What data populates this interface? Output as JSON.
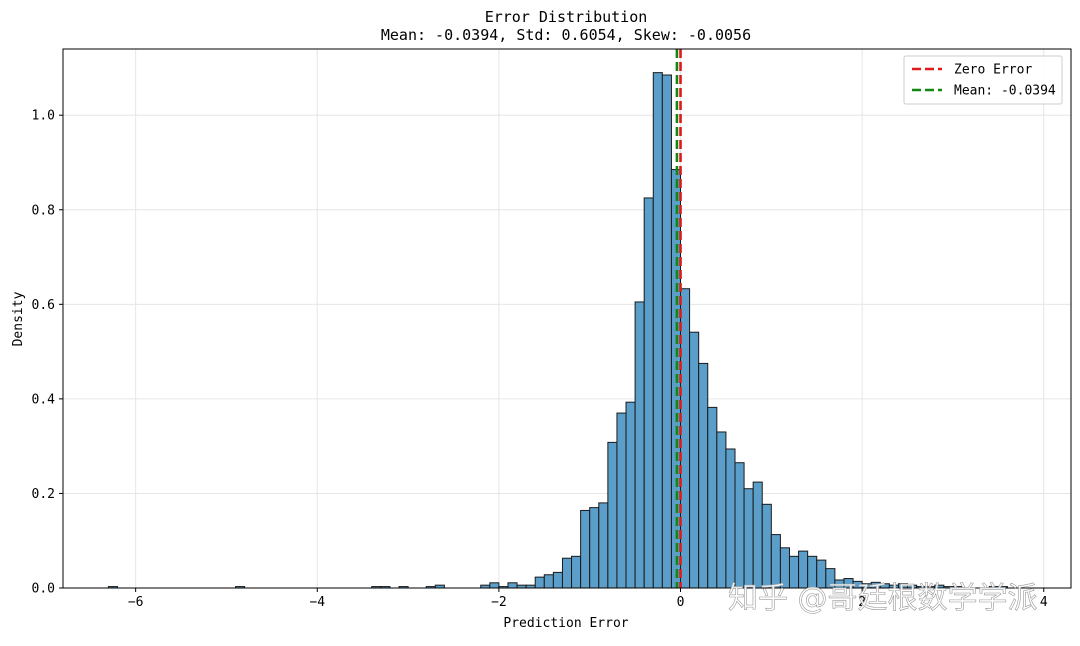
{
  "chart_data": {
    "type": "bar",
    "title": "Error Distribution",
    "subtitle": "Mean: -0.0394, Std: 0.6054, Skew: -0.0056",
    "xlabel": "Prediction Error",
    "ylabel": "Density",
    "xlim": [
      -6.8,
      4.3
    ],
    "ylim": [
      0,
      1.14
    ],
    "xticks": [
      -6,
      -4,
      -2,
      0,
      2,
      4
    ],
    "xtick_labels": [
      "−6",
      "−4",
      "−2",
      "0",
      "2",
      "4"
    ],
    "yticks": [
      0.0,
      0.2,
      0.4,
      0.6,
      0.8,
      1.0
    ],
    "ytick_labels": [
      "0.0",
      "0.2",
      "0.4",
      "0.6",
      "0.8",
      "1.0"
    ],
    "grid": true,
    "legend_position": "top-right",
    "bin_start": -6.3,
    "bin_width": 0.1,
    "values": [
      0.003,
      0,
      0,
      0,
      0,
      0,
      0,
      0,
      0,
      0,
      0,
      0,
      0,
      0,
      0.003,
      0,
      0,
      0,
      0,
      0,
      0,
      0,
      0,
      0,
      0,
      0,
      0,
      0,
      0,
      0.003,
      0.003,
      0,
      0.003,
      0,
      0,
      0.003,
      0.006,
      0,
      0,
      0,
      0,
      0.006,
      0.011,
      0.003,
      0.011,
      0.006,
      0.006,
      0.023,
      0.028,
      0.033,
      0.063,
      0.067,
      0.164,
      0.17,
      0.18,
      0.308,
      0.37,
      0.393,
      0.605,
      0.825,
      1.09,
      1.085,
      0.885,
      0.633,
      0.541,
      0.475,
      0.382,
      0.33,
      0.294,
      0.265,
      0.21,
      0.224,
      0.177,
      0.113,
      0.085,
      0.067,
      0.078,
      0.067,
      0.059,
      0.041,
      0.017,
      0.02,
      0.014,
      0.009,
      0.012,
      0.009,
      0.006,
      0.009,
      0.006,
      0.003,
      0.003,
      0.006,
      0.003,
      0.003,
      0,
      0,
      0,
      0.003,
      0.003
    ],
    "bar_color": "#5b9ec9",
    "bar_edge_color": "#1a1a1a",
    "reference_lines": [
      {
        "name": "Zero Error",
        "x": 0,
        "color": "#e01a1a"
      },
      {
        "name": "Mean: -0.0394",
        "x": -0.0394,
        "color": "#118811"
      }
    ],
    "legend": [
      {
        "label": "Zero Error",
        "color": "#e01a1a"
      },
      {
        "label": "Mean: -0.0394",
        "color": "#118811"
      }
    ]
  },
  "watermark": "知乎 @哥廷根数学学派"
}
